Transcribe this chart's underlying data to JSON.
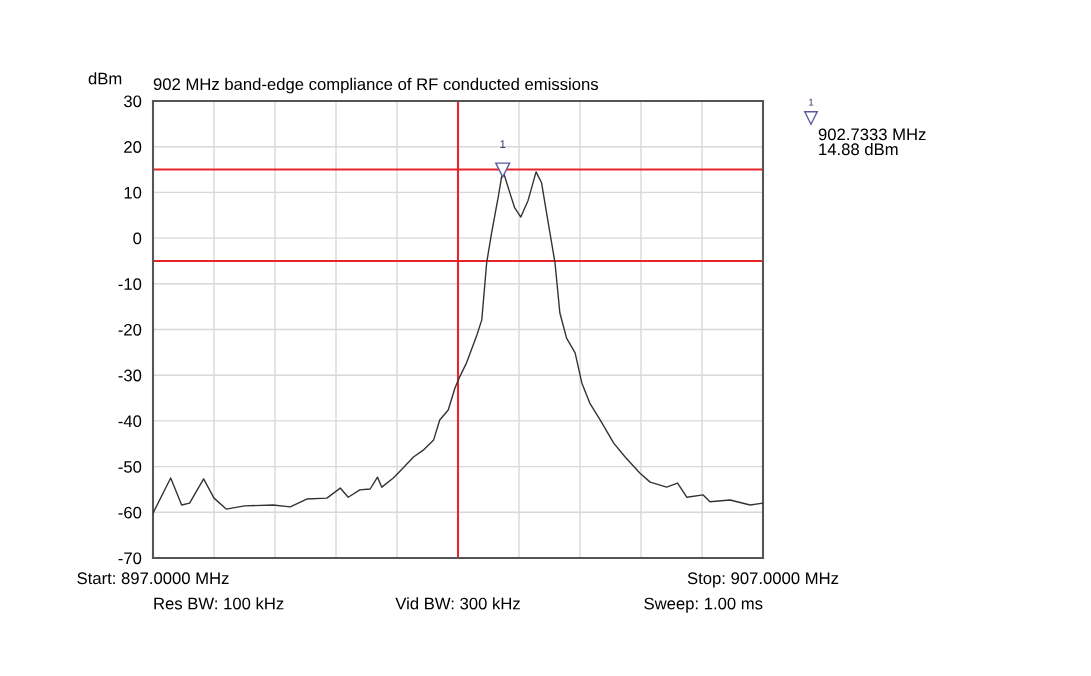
{
  "chart_data": {
    "type": "line",
    "title": "902 MHz band-edge compliance of RF conducted emissions",
    "ylabel": "dBm",
    "x": [
      897.0,
      897.29,
      897.47,
      897.6,
      897.83,
      898.0,
      898.2,
      898.5,
      898.97,
      899.25,
      899.52,
      899.85,
      900.07,
      900.2,
      900.39,
      900.56,
      900.68,
      900.75,
      900.94,
      901.1,
      901.27,
      901.43,
      901.6,
      901.7,
      901.84,
      901.95,
      902.03,
      902.14,
      902.31,
      902.39,
      902.47,
      902.55,
      902.66,
      902.7333,
      902.85,
      902.93,
      903.03,
      903.15,
      903.28,
      903.37,
      903.48,
      903.59,
      903.67,
      903.78,
      903.92,
      904.03,
      904.16,
      904.33,
      904.55,
      904.74,
      904.98,
      905.15,
      905.42,
      905.6,
      905.75,
      906.02,
      906.13,
      906.46,
      906.79,
      907.0
    ],
    "series": [
      {
        "color": "#333333",
        "values": [
          -60.2,
          -52.5,
          -58.4,
          -58,
          -52.7,
          -56.9,
          -59.3,
          -58.6,
          -58.4,
          -58.8,
          -57.1,
          -56.9,
          -54.7,
          -56.7,
          -55.1,
          -54.9,
          -52.3,
          -54.5,
          -52.5,
          -50.3,
          -47.9,
          -46.4,
          -44.2,
          -39.8,
          -37.6,
          -32.8,
          -30.3,
          -27.3,
          -21.2,
          -17.9,
          -5.4,
          1.1,
          9.0,
          14.88,
          9.9,
          6.6,
          4.6,
          8.3,
          14.5,
          12.1,
          3.3,
          -5.4,
          -16.4,
          -21.9,
          -25.1,
          -31.7,
          -36.1,
          -39.8,
          -44.8,
          -47.9,
          -51.4,
          -53.4,
          -54.5,
          -53.6,
          -56.7,
          -56.2,
          -57.7,
          -57.3,
          -58.4,
          -58.0
        ]
      }
    ],
    "xlim": [
      897,
      907
    ],
    "xticks": [
      {
        "value": 897,
        "label": "Start: 897.0000 MHz"
      },
      {
        "value": 898,
        "label": null
      },
      {
        "value": 899,
        "label": null
      },
      {
        "value": 900,
        "label": null
      },
      {
        "value": 901,
        "label": null
      },
      {
        "value": 902,
        "label": null
      },
      {
        "value": 903,
        "label": null
      },
      {
        "value": 904,
        "label": null
      },
      {
        "value": 905,
        "label": null
      },
      {
        "value": 906,
        "label": null
      },
      {
        "value": 907,
        "label": "Stop: 907.0000 MHz"
      }
    ],
    "ylim": [
      -70,
      30
    ],
    "yticks": [
      -70,
      -60,
      -50,
      -40,
      -30,
      -20,
      -10,
      0,
      10,
      20,
      30
    ],
    "grid": true,
    "legend": false,
    "marker": "none",
    "line_style": "solid",
    "ref_lines": [
      {
        "axis": "y",
        "value": 15,
        "color": "#e8242b"
      },
      {
        "axis": "y",
        "value": -5,
        "color": "#e8242b"
      },
      {
        "axis": "x",
        "value": 902,
        "color": "#e8242b"
      }
    ],
    "annotations": [
      {
        "text": "1",
        "x": 902.7333,
        "y": 14.88
      },
      "1",
      "902.7333 MHz\n14.88 dBm",
      "Res BW: 100 kHz",
      "Vid BW: 300 kHz",
      "Sweep: 1.00 ms"
    ]
  }
}
